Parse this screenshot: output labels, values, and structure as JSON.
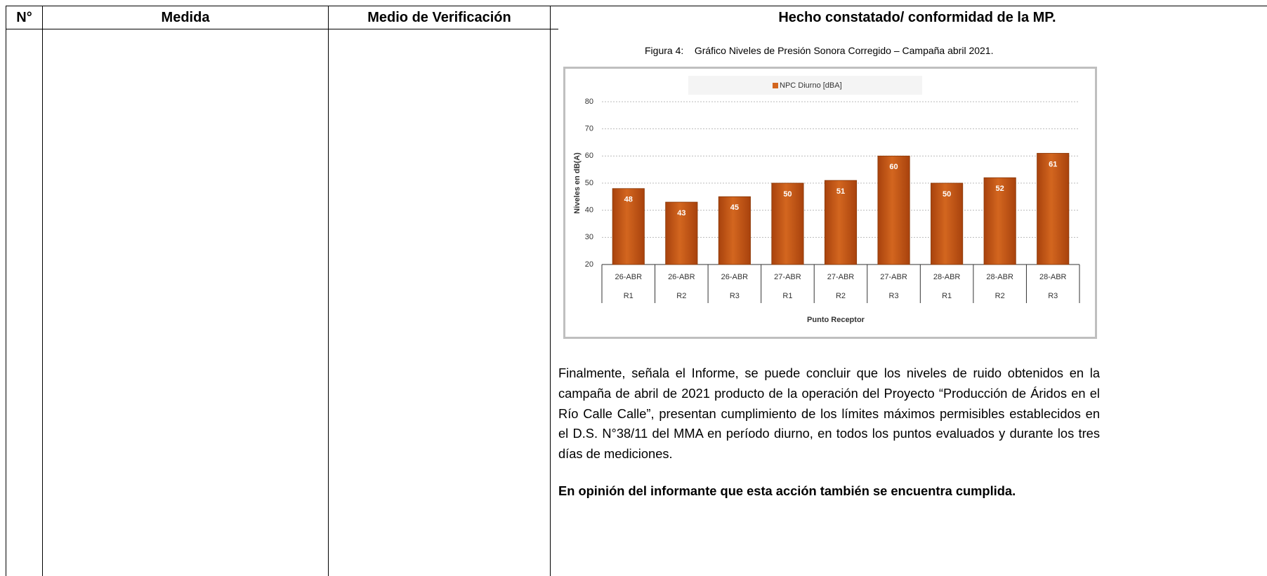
{
  "table": {
    "headers": [
      "N°",
      "Medida",
      "Medio de Verificación",
      "Hecho constatado/ conformidad de la MP."
    ]
  },
  "figure_caption": {
    "label": "Figura 4:",
    "text": "Gráfico Niveles de Presión Sonora Corregido – Campaña abril 2021."
  },
  "chart_data": {
    "type": "bar",
    "legend": "NPC Diurno  [dBA]",
    "y_label": "Niveles en dB(A)",
    "x_label": "Punto Receptor",
    "categories": [
      {
        "date": "26-ABR",
        "point": "R1"
      },
      {
        "date": "26-ABR",
        "point": "R2"
      },
      {
        "date": "26-ABR",
        "point": "R3"
      },
      {
        "date": "27-ABR",
        "point": "R1"
      },
      {
        "date": "27-ABR",
        "point": "R2"
      },
      {
        "date": "27-ABR",
        "point": "R3"
      },
      {
        "date": "28-ABR",
        "point": "R1"
      },
      {
        "date": "28-ABR",
        "point": "R2"
      },
      {
        "date": "28-ABR",
        "point": "R3"
      }
    ],
    "values": [
      48,
      43,
      45,
      50,
      51,
      60,
      50,
      52,
      61
    ],
    "color": "#d3661f",
    "ylim": [
      20,
      80
    ],
    "yticks": [
      20,
      30,
      40,
      50,
      60,
      70,
      80
    ],
    "grid": true
  },
  "paragraph": "Finalmente, señala el Informe, se puede concluir que los niveles de ruido obtenidos en la campaña de abril de 2021 producto de la operación del Proyecto “Producción de Áridos en el Río Calle Calle”, presentan cumplimiento de los límites máximos permisibles establecidos en el D.S. N°38/11 del MMA en período diurno, en todos los puntos evaluados y durante los tres días de mediciones.",
  "conclusion": "En opinión del informante que esta acción también se encuentra cumplida."
}
